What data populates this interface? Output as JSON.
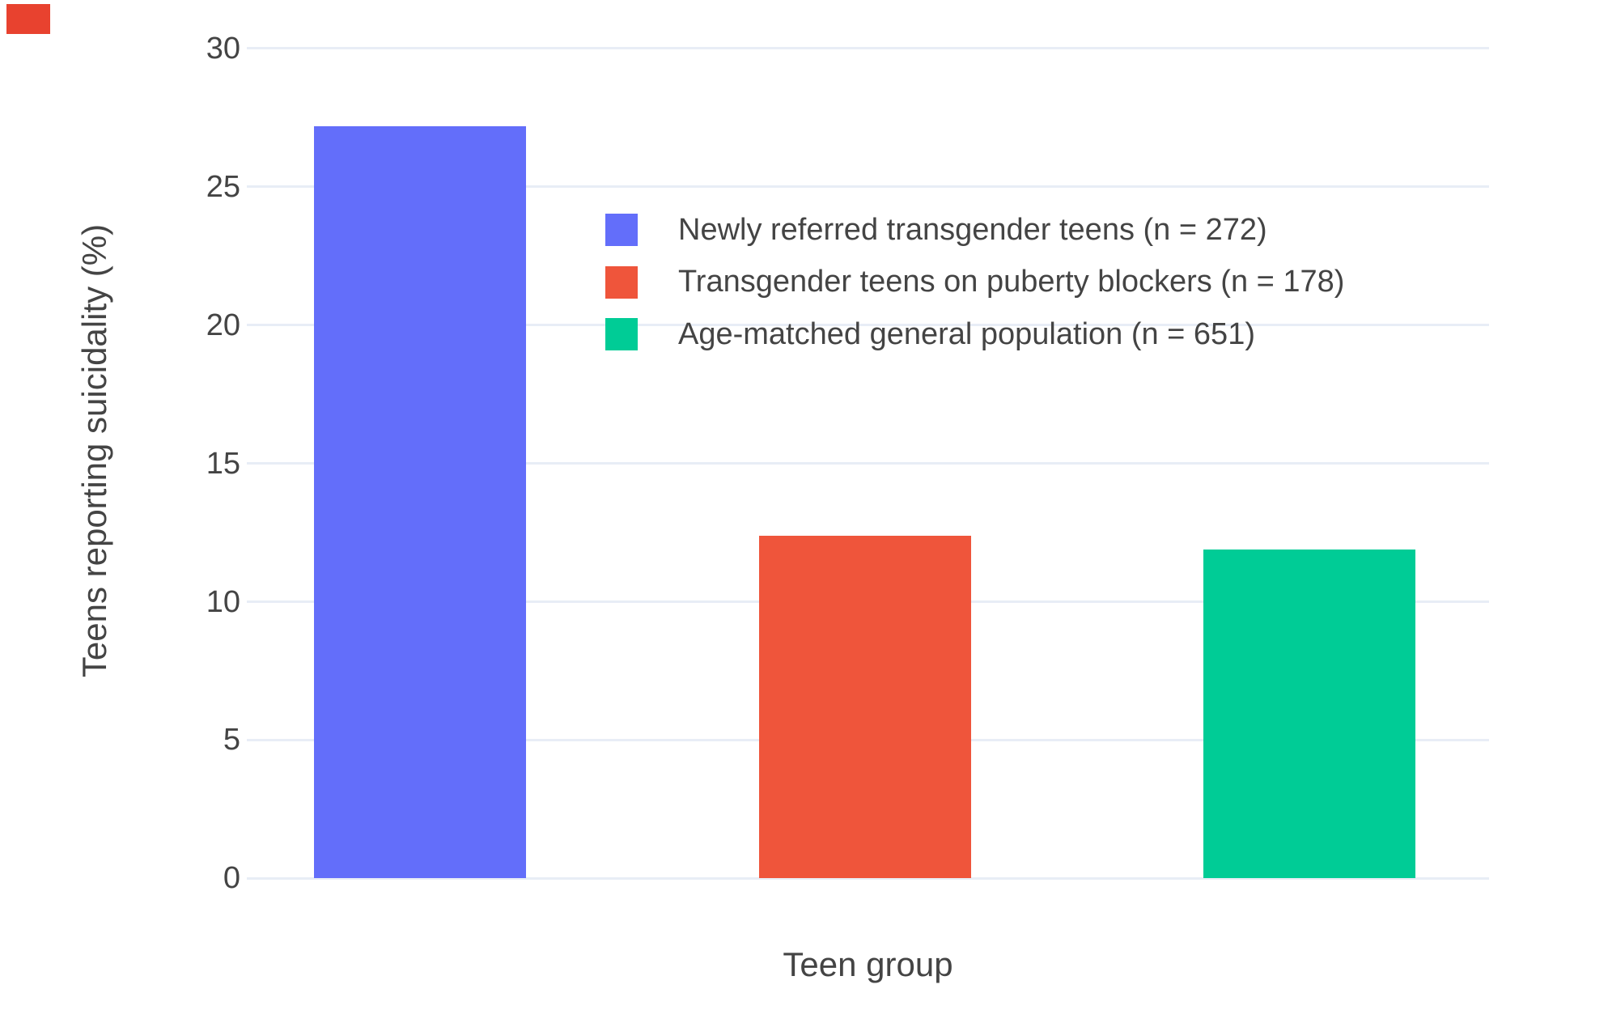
{
  "decorations": {
    "corner_marker_color": "#e8422f"
  },
  "chart_data": {
    "type": "bar",
    "title": "",
    "xlabel": "Teen group",
    "ylabel": "Teens reporting suicidality (%)",
    "categories": [
      "Newly referred transgender teens (n = 272)",
      "Transgender teens on puberty blockers (n = 178)",
      "Age-matched general population (n = 651)"
    ],
    "values": [
      27.2,
      12.4,
      11.9
    ],
    "colors": [
      "#636EFA",
      "#EF553B",
      "#00CC96"
    ],
    "yticks": [
      0,
      5,
      10,
      15,
      20,
      25,
      30
    ],
    "ylim": [
      0,
      31
    ],
    "grid": true,
    "grid_color": "#e8edf6",
    "text_color": "#444444",
    "background_color": "#ffffff",
    "legend_position": "inside top, left of plot center-right"
  }
}
